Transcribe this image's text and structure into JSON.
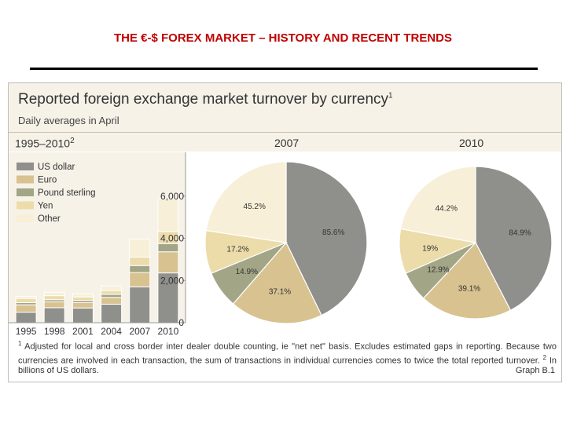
{
  "slide": {
    "title": "THE €-$ FOREX MARKET – HISTORY AND RECENT TRENDS"
  },
  "panel": {
    "title": "Reported foreign exchange market turnover by currency",
    "title_sup": "1",
    "subtitle": "Daily averages in April",
    "footnote_marker": "1",
    "footnote": "Adjusted for local and cross border inter dealer double counting, ie \"net net\" basis. Excludes estimated gaps in reporting. Because two currencies are involved in each transaction, the sum of transactions in individual currencies comes to twice the total reported turnover.",
    "footnote2_marker": "2",
    "footnote2": "In billions of US dollars.",
    "graph_label": "Graph B.1"
  },
  "colors": {
    "usd": "#8f8f8b",
    "eur": "#d8c290",
    "gbp": "#a3a587",
    "jpy": "#ecdcaa",
    "other": "#f7efd7"
  },
  "chart_data": [
    {
      "type": "bar",
      "stacked": true,
      "title": "1995–2010",
      "title_sup": "2",
      "categories": [
        "1995",
        "1998",
        "2001",
        "2004",
        "2007",
        "2010"
      ],
      "series": [
        {
          "name": "US dollar",
          "values": [
            500,
            710,
            700,
            880,
            1700,
            2360
          ]
        },
        {
          "name": "Euro",
          "values": [
            350,
            280,
            260,
            320,
            680,
            1000
          ]
        },
        {
          "name": "Pound sterling",
          "values": [
            100,
            100,
            100,
            140,
            330,
            390
          ]
        },
        {
          "name": "Yen",
          "values": [
            200,
            190,
            160,
            180,
            400,
            570
          ]
        },
        {
          "name": "Other",
          "values": [
            100,
            160,
            150,
            220,
            850,
            1560
          ]
        }
      ],
      "yticks": [
        "0",
        "2,000",
        "4,000",
        "6,000"
      ],
      "ylim": [
        0,
        8000
      ],
      "legend_position": "top-left"
    },
    {
      "type": "pie",
      "title": "2007",
      "slices": [
        {
          "name": "US dollar",
          "value": 85.6,
          "label": "85.6%"
        },
        {
          "name": "Euro",
          "value": 37.1,
          "label": "37.1%"
        },
        {
          "name": "Pound sterling",
          "value": 14.9,
          "label": "14.9%"
        },
        {
          "name": "Yen",
          "value": 17.2,
          "label": "17.2%"
        },
        {
          "name": "Other",
          "value": 45.2,
          "label": "45.2%"
        }
      ]
    },
    {
      "type": "pie",
      "title": "2010",
      "slices": [
        {
          "name": "US dollar",
          "value": 84.9,
          "label": "84.9%"
        },
        {
          "name": "Euro",
          "value": 39.1,
          "label": "39.1%"
        },
        {
          "name": "Pound sterling",
          "value": 12.9,
          "label": "12.9%"
        },
        {
          "name": "Yen",
          "value": 19,
          "label": "19%"
        },
        {
          "name": "Other",
          "value": 44.2,
          "label": "44.2%"
        }
      ]
    }
  ]
}
